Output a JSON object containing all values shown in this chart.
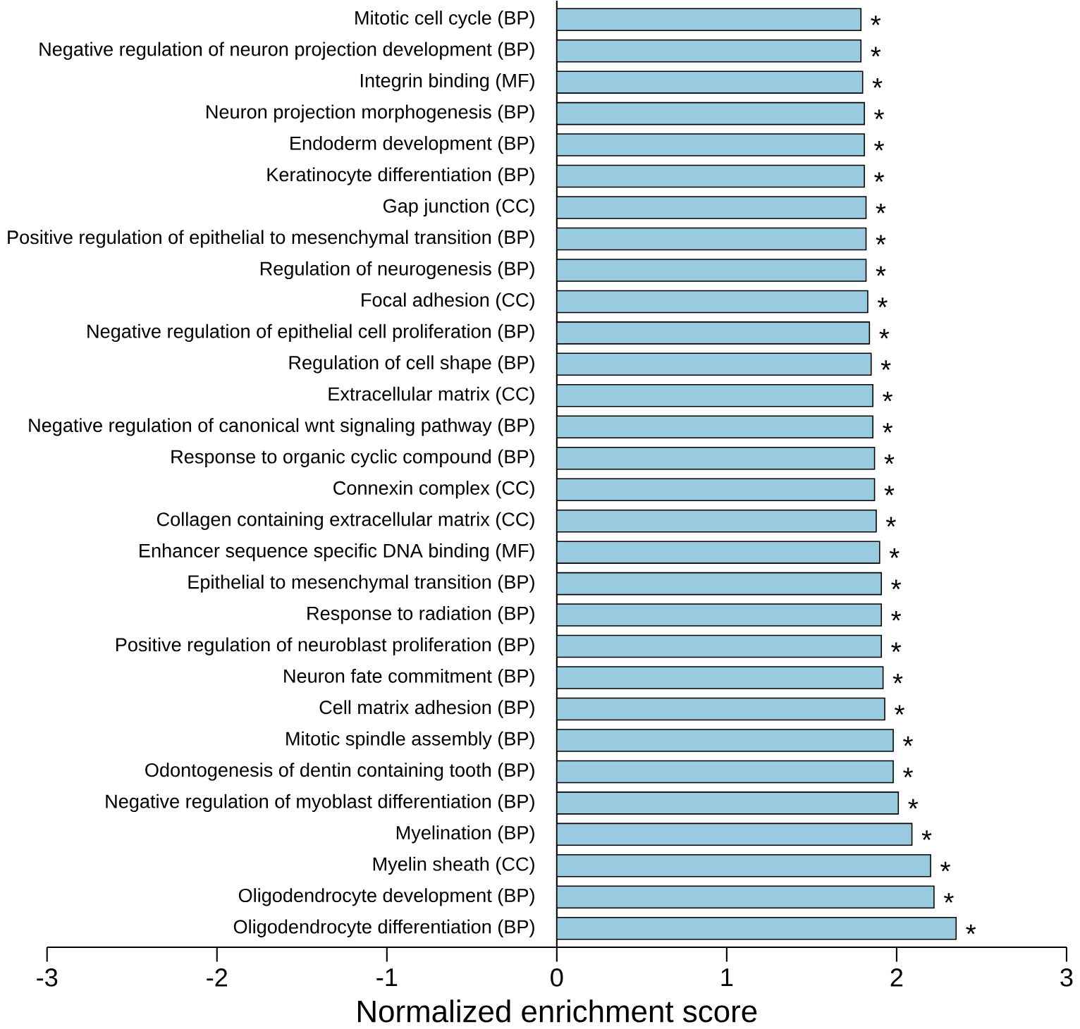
{
  "chart_data": {
    "type": "bar",
    "orientation": "horizontal",
    "xlabel": "Normalized enrichment score",
    "categories": [
      "Mitotic cell cycle (BP)",
      "Negative regulation of neuron projection development (BP)",
      "Integrin binding (MF)",
      "Neuron projection morphogenesis (BP)",
      "Endoderm development (BP)",
      "Keratinocyte differentiation (BP)",
      "Gap junction (CC)",
      "Positive regulation of epithelial to mesenchymal transition (BP)",
      "Regulation of neurogenesis (BP)",
      "Focal adhesion (CC)",
      "Negative regulation of epithelial cell proliferation (BP)",
      "Regulation of cell shape (BP)",
      "Extracellular matrix (CC)",
      "Negative regulation of canonical wnt signaling pathway (BP)",
      "Response to organic cyclic compound (BP)",
      "Connexin complex (CC)",
      "Collagen containing extracellular matrix (CC)",
      "Enhancer sequence specific DNA binding (MF)",
      "Epithelial to mesenchymal transition (BP)",
      "Response to radiation (BP)",
      "Positive regulation of neuroblast proliferation (BP)",
      "Neuron fate commitment (BP)",
      "Cell matrix adhesion (BP)",
      "Mitotic spindle assembly (BP)",
      "Odontogenesis of dentin containing tooth (BP)",
      "Negative regulation of myoblast differentiation (BP)",
      "Myelination (BP)",
      "Myelin sheath (CC)",
      "Oligodendrocyte development (BP)",
      "Oligodendrocyte differentiation (BP)"
    ],
    "values": [
      1.79,
      1.79,
      1.8,
      1.81,
      1.81,
      1.81,
      1.82,
      1.82,
      1.82,
      1.83,
      1.84,
      1.85,
      1.86,
      1.86,
      1.87,
      1.87,
      1.88,
      1.9,
      1.91,
      1.91,
      1.91,
      1.92,
      1.93,
      1.98,
      1.98,
      2.01,
      2.09,
      2.2,
      2.22,
      2.35
    ],
    "value_labels": [
      "*",
      "*",
      "*",
      "*",
      "*",
      "*",
      "*",
      "*",
      "*",
      "*",
      "*",
      "*",
      "*",
      "*",
      "*",
      "*",
      "*",
      "*",
      "*",
      "*",
      "*",
      "*",
      "*",
      "*",
      "*",
      "*",
      "*",
      "*",
      "*",
      "*"
    ],
    "color": "#99cbe0",
    "xlim": [
      -3,
      3
    ],
    "xticks": [
      -3,
      -2,
      -1,
      0,
      1,
      2,
      3
    ]
  }
}
